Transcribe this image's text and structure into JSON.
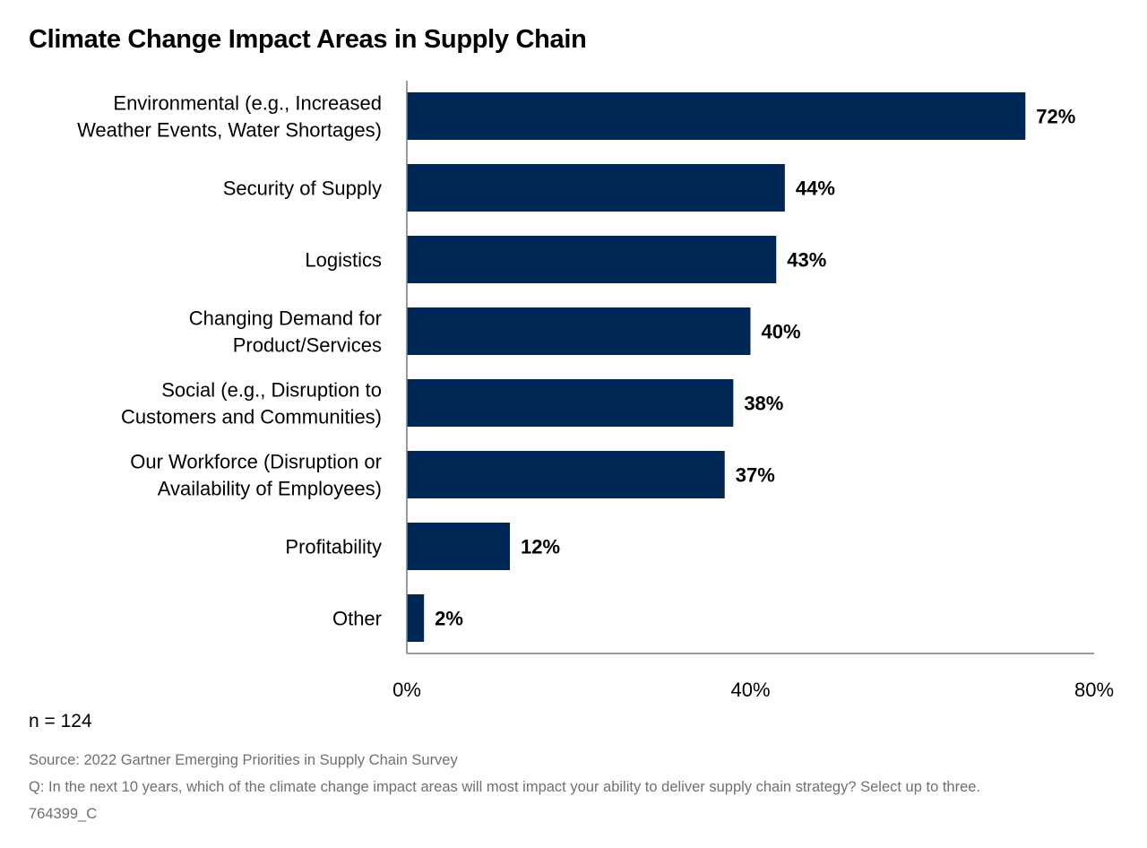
{
  "chart_data": {
    "type": "bar",
    "orientation": "horizontal",
    "title": "Climate Change Impact Areas in Supply Chain",
    "categories": [
      [
        "Environmental (e.g., Increased",
        "Weather Events, Water Shortages)"
      ],
      [
        "Security of Supply"
      ],
      [
        "Logistics"
      ],
      [
        "Changing Demand for",
        "Product/Services"
      ],
      [
        "Social (e.g., Disruption to",
        "Customers and Communities)"
      ],
      [
        "Our Workforce (Disruption or",
        "Availability of Employees)"
      ],
      [
        "Profitability"
      ],
      [
        "Other"
      ]
    ],
    "values": [
      72,
      44,
      43,
      40,
      38,
      37,
      12,
      2
    ],
    "value_labels": [
      "72%",
      "44%",
      "43%",
      "40%",
      "38%",
      "37%",
      "12%",
      "2%"
    ],
    "xlim": [
      0,
      80
    ],
    "xticks": [
      0,
      40,
      80
    ],
    "xtick_labels": [
      "0%",
      "40%",
      "80%"
    ],
    "xlabel": "",
    "ylabel": "",
    "grid": false,
    "bar_color": "#002856"
  },
  "sample": "n = 124",
  "footer": {
    "source": "Source: 2022 Gartner Emerging Priorities in Supply Chain Survey",
    "question": "Q: In the next 10 years, which of the climate change impact areas will most impact your ability to deliver supply chain strategy? Select up to three.",
    "id": "764399_C"
  }
}
